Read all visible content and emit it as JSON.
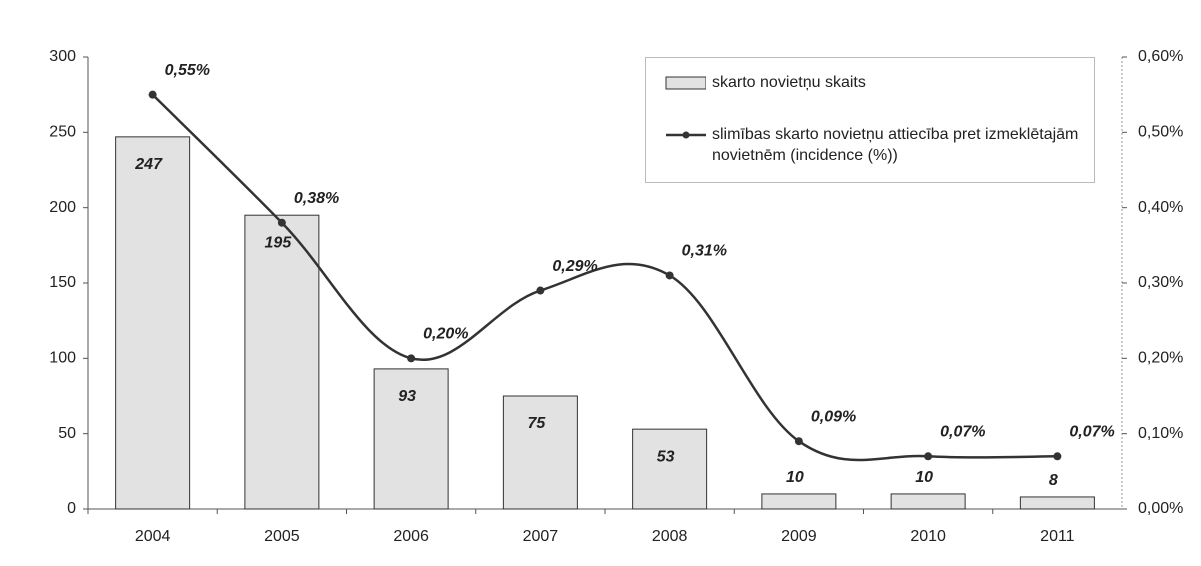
{
  "chart_data": {
    "type": "bar",
    "categories": [
      "2004",
      "2005",
      "2006",
      "2007",
      "2008",
      "2009",
      "2010",
      "2011"
    ],
    "series": [
      {
        "name": "skarto novietņu skaits",
        "type": "bar",
        "color": "#e2e2e2",
        "values": [
          247,
          195,
          93,
          75,
          53,
          10,
          10,
          8
        ]
      },
      {
        "name": "slimības skarto novietņu attiecība pret izmeklētajām  novietnēm (incidence (%))",
        "type": "line",
        "axis": "y2",
        "color": "#333333",
        "values": [
          0.55,
          0.38,
          0.2,
          0.29,
          0.31,
          0.09,
          0.07,
          0.07
        ],
        "value_labels": [
          "0,55%",
          "0,38%",
          "0,20%",
          "0,29%",
          "0,31%",
          "0,09%",
          "0,07%",
          "0,07%"
        ]
      }
    ],
    "ylim": [
      0,
      300
    ],
    "yticks": [
      0,
      50,
      100,
      150,
      200,
      250,
      300
    ],
    "y2lim": [
      0,
      0.6
    ],
    "y2ticks": [
      {
        "value": 0,
        "label": "0,00%"
      },
      {
        "value": 0.1,
        "label": "0,10%"
      },
      {
        "value": 0.2,
        "label": "0,20%"
      },
      {
        "value": 0.3,
        "label": "0,30%"
      },
      {
        "value": 0.4,
        "label": "0,40%"
      },
      {
        "value": 0.5,
        "label": "0,50%"
      },
      {
        "value": 0.6,
        "label": "0,60%"
      }
    ],
    "legend": "top-right"
  }
}
